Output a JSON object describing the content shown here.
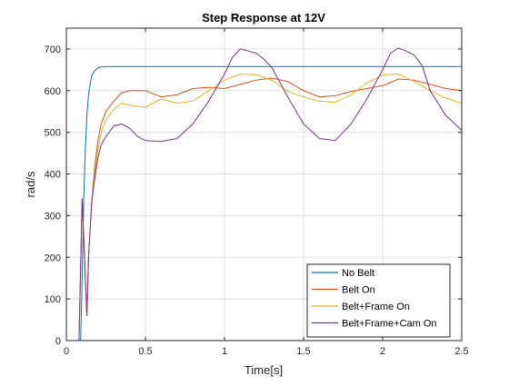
{
  "chart_data": {
    "type": "line",
    "title": "Step Response at 12V",
    "xlabel": "Time[s]",
    "ylabel": "rad/s",
    "xlim": [
      0,
      2.5
    ],
    "ylim": [
      0,
      750
    ],
    "xticks": [
      0,
      0.5,
      1,
      1.5,
      2,
      2.5
    ],
    "xtick_labels": [
      "0",
      "0.5",
      "1",
      "1.5",
      "2",
      "2.5"
    ],
    "yticks": [
      0,
      100,
      200,
      300,
      400,
      500,
      600,
      700
    ],
    "ytick_labels": [
      "0",
      "100",
      "200",
      "300",
      "400",
      "500",
      "600",
      "700"
    ],
    "grid": true,
    "legend_position": "bottom-right",
    "series": [
      {
        "name": "No Belt",
        "color": "#0072BD",
        "x": [
          0.09,
          0.1,
          0.11,
          0.12,
          0.13,
          0.14,
          0.15,
          0.16,
          0.18,
          0.2,
          0.22,
          0.25,
          0.3,
          0.5,
          1.0,
          1.5,
          2.0,
          2.5
        ],
        "y": [
          0,
          150,
          340,
          460,
          540,
          590,
          615,
          635,
          648,
          655,
          657,
          658,
          658,
          658,
          658,
          658,
          658,
          658
        ]
      },
      {
        "name": "Belt On",
        "color": "#D95319",
        "x": [
          0.08,
          0.1,
          0.12,
          0.13,
          0.14,
          0.16,
          0.18,
          0.2,
          0.22,
          0.25,
          0.3,
          0.35,
          0.4,
          0.5,
          0.6,
          0.7,
          0.8,
          0.9,
          1.0,
          1.1,
          1.2,
          1.3,
          1.4,
          1.5,
          1.6,
          1.7,
          1.8,
          1.9,
          2.0,
          2.1,
          2.2,
          2.3,
          2.4,
          2.5
        ],
        "y": [
          0,
          340,
          150,
          60,
          200,
          330,
          420,
          480,
          520,
          550,
          575,
          595,
          600,
          600,
          585,
          590,
          605,
          608,
          605,
          615,
          625,
          630,
          622,
          600,
          585,
          588,
          598,
          605,
          612,
          628,
          625,
          615,
          605,
          600
        ]
      },
      {
        "name": "Belt+Frame On",
        "color": "#EDB120",
        "x": [
          0.08,
          0.1,
          0.12,
          0.13,
          0.14,
          0.16,
          0.18,
          0.2,
          0.22,
          0.25,
          0.3,
          0.35,
          0.4,
          0.5,
          0.6,
          0.7,
          0.8,
          0.9,
          1.0,
          1.1,
          1.2,
          1.3,
          1.4,
          1.5,
          1.6,
          1.7,
          1.8,
          1.9,
          2.0,
          2.1,
          2.2,
          2.3,
          2.4,
          2.5
        ],
        "y": [
          0,
          340,
          150,
          60,
          200,
          330,
          400,
          460,
          500,
          530,
          555,
          570,
          565,
          560,
          580,
          570,
          575,
          600,
          625,
          640,
          638,
          625,
          598,
          585,
          575,
          572,
          590,
          618,
          638,
          640,
          622,
          600,
          582,
          570
        ]
      },
      {
        "name": "Belt+Frame+Cam On",
        "color": "#7E2F8E",
        "x": [
          0.08,
          0.1,
          0.12,
          0.13,
          0.14,
          0.16,
          0.18,
          0.2,
          0.22,
          0.25,
          0.3,
          0.35,
          0.4,
          0.45,
          0.5,
          0.6,
          0.7,
          0.8,
          0.9,
          1.0,
          1.05,
          1.1,
          1.15,
          1.2,
          1.25,
          1.3,
          1.4,
          1.5,
          1.6,
          1.7,
          1.8,
          1.9,
          2.0,
          2.05,
          2.1,
          2.15,
          2.2,
          2.25,
          2.3,
          2.4,
          2.5
        ],
        "y": [
          0,
          340,
          150,
          60,
          200,
          330,
          390,
          440,
          470,
          490,
          515,
          520,
          510,
          490,
          480,
          478,
          485,
          520,
          575,
          640,
          680,
          700,
          695,
          690,
          675,
          655,
          585,
          520,
          485,
          480,
          520,
          580,
          650,
          690,
          702,
          695,
          685,
          660,
          600,
          540,
          505
        ]
      }
    ]
  }
}
